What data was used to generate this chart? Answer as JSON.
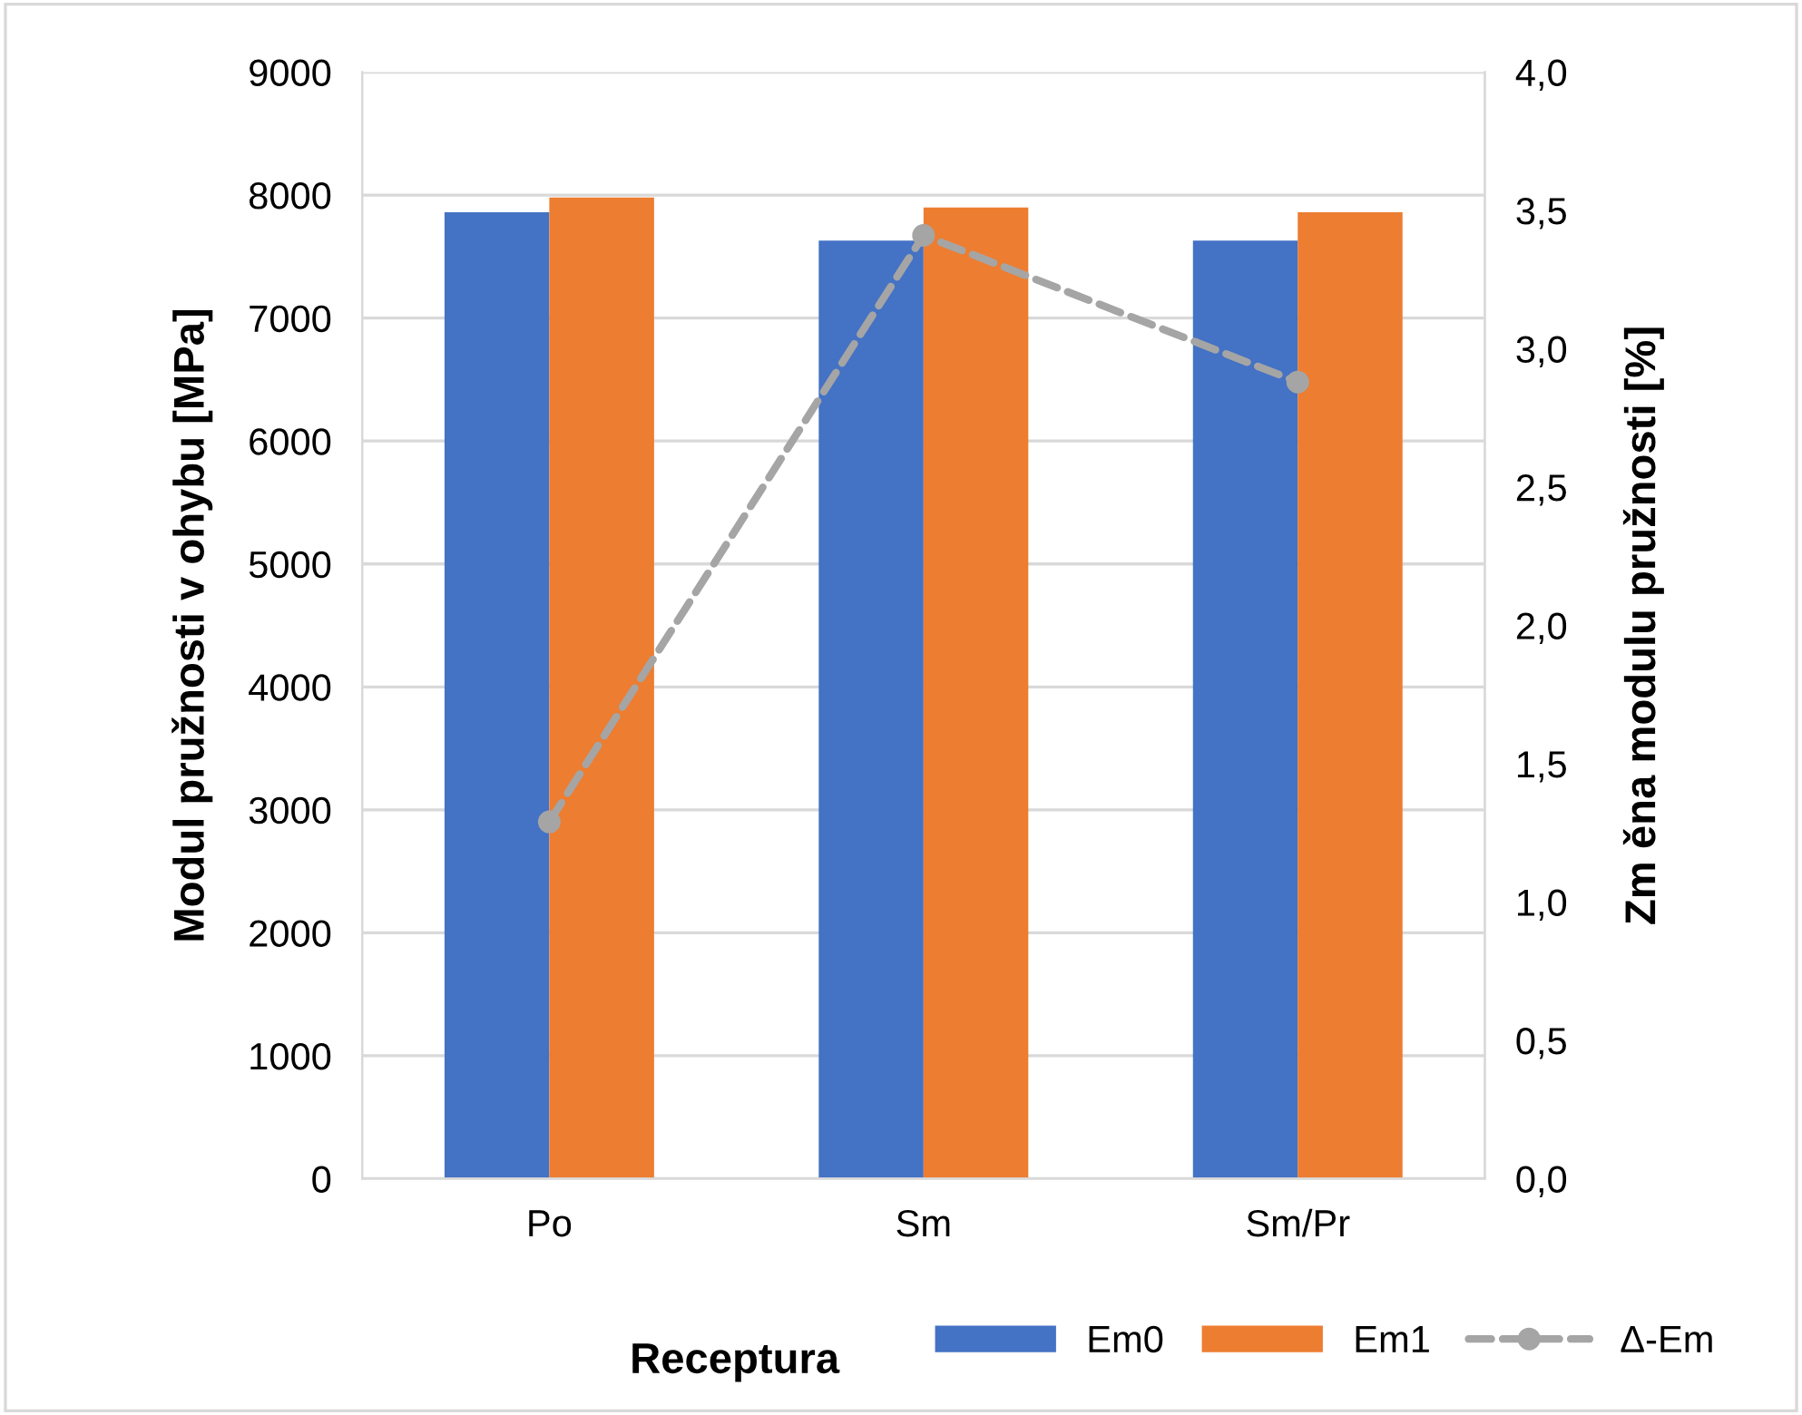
{
  "chart_data": {
    "type": "bar",
    "xlabel": "Receptura",
    "ylabel": "Modul pružnosti v ohybu [MPa]",
    "y2label": "Zm ěna modulu pružnosti [%]",
    "categories": [
      "Po",
      "Sm",
      "Sm/Pr"
    ],
    "series": [
      {
        "name": "Em0",
        "color": "#4472c4",
        "values": [
          7860,
          7630,
          7630
        ]
      },
      {
        "name": "Em1",
        "color": "#ed7d31",
        "values": [
          7980,
          7900,
          7860
        ]
      },
      {
        "name": "Δ-Em",
        "type": "line",
        "axis": "y2",
        "color": "#a5a5a5",
        "marker": "circle",
        "line_style": "dashed",
        "values": [
          1.29,
          3.41,
          2.88
        ]
      }
    ],
    "ylim": [
      0,
      9000
    ],
    "yticks": [
      0,
      1000,
      2000,
      3000,
      4000,
      5000,
      6000,
      7000,
      8000,
      9000
    ],
    "y2lim": [
      0,
      4.0
    ],
    "y2ticks": [
      {
        "value": 0,
        "label": "0,0"
      },
      {
        "value": 0.5,
        "label": "0,5"
      },
      {
        "value": 1.0,
        "label": "1,0"
      },
      {
        "value": 1.5,
        "label": "1,5"
      },
      {
        "value": 2.0,
        "label": "2,0"
      },
      {
        "value": 2.5,
        "label": "2,5"
      },
      {
        "value": 3.0,
        "label": "3,0"
      },
      {
        "value": 3.5,
        "label": "3,5"
      },
      {
        "value": 4.0,
        "label": "4,0"
      }
    ],
    "grid": "y",
    "legend": "bottom"
  }
}
